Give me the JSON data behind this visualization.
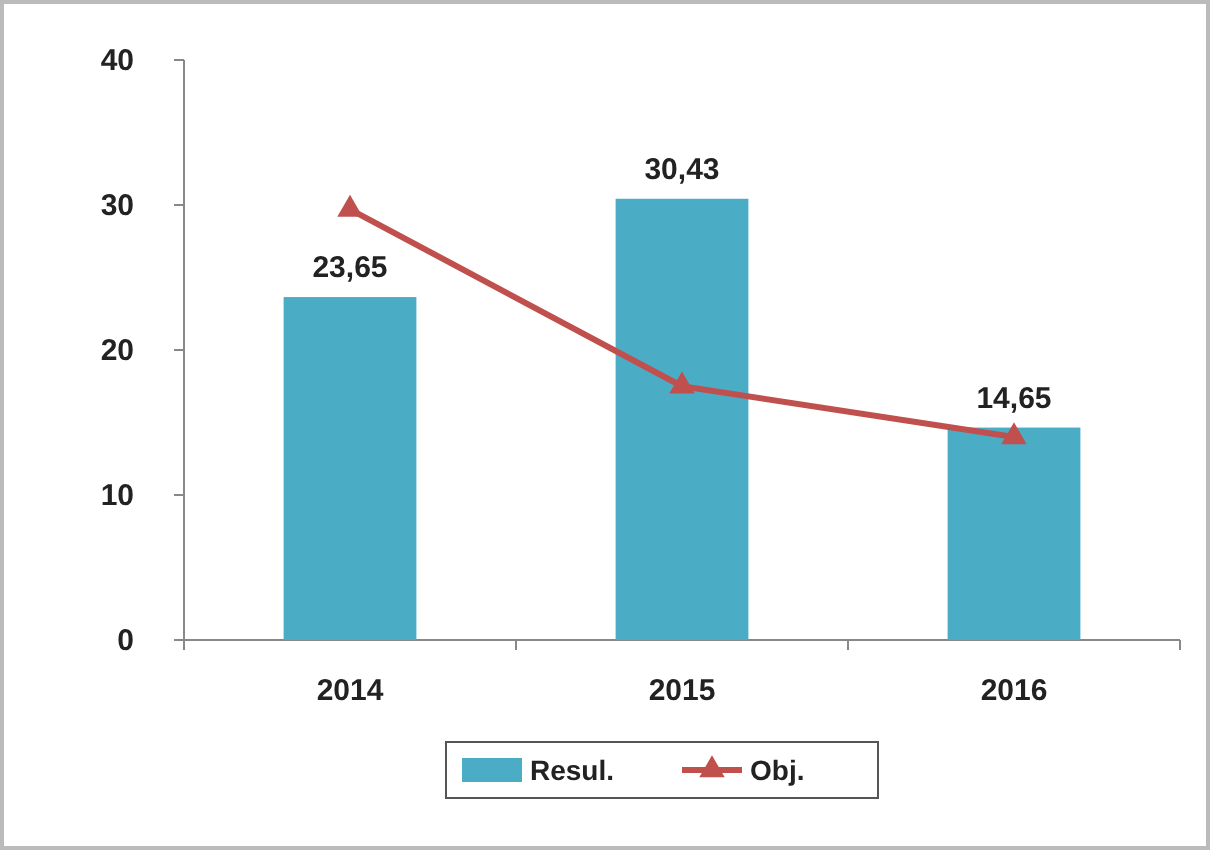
{
  "chart_data": {
    "type": "bar",
    "categories": [
      "2014",
      "2015",
      "2016"
    ],
    "series": [
      {
        "name": "Resul.",
        "color": "#4bacc6",
        "values": [
          23.65,
          30.43,
          14.65
        ],
        "value_labels": [
          "23,65",
          "30,43",
          "14,65"
        ]
      },
      {
        "name": "Obj.",
        "type": "line",
        "color": "#c0504d",
        "values": [
          29.7,
          17.5,
          14
        ],
        "marker": "triangle"
      }
    ],
    "ylim": [
      0,
      40
    ],
    "yticks": [
      0,
      10,
      20,
      30,
      40
    ],
    "grid": false,
    "legend": "bottom"
  }
}
